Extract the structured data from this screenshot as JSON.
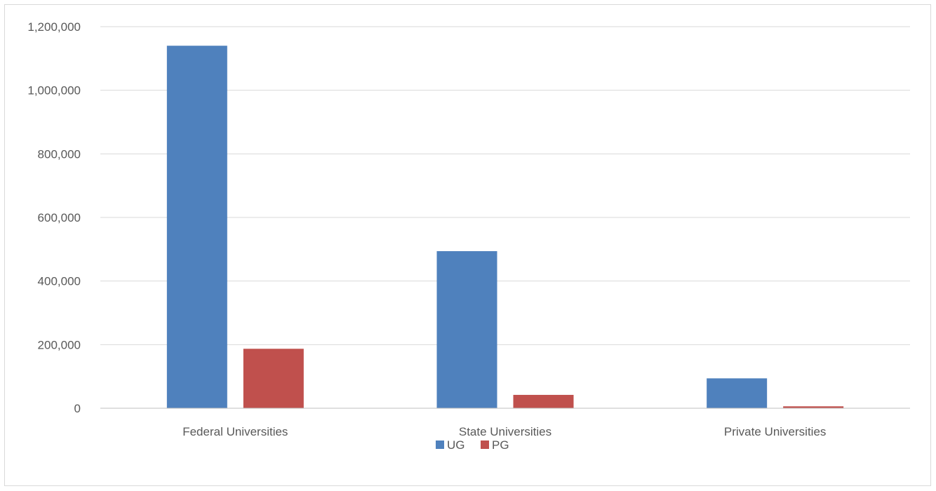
{
  "chart_data": {
    "type": "bar",
    "categories": [
      "Federal Universities",
      "State Universities",
      "Private Universities"
    ],
    "series": [
      {
        "name": "UG",
        "color": "#4f81bd",
        "values": [
          1140000,
          494000,
          94000
        ]
      },
      {
        "name": "PG",
        "color": "#c0504d",
        "values": [
          187000,
          42000,
          6000
        ]
      }
    ],
    "ylim": [
      0,
      1200000
    ],
    "yticks": [
      "0",
      "200,000",
      "400,000",
      "600,000",
      "800,000",
      "1,000,000",
      "1,200,000"
    ],
    "ytick_values": [
      0,
      200000,
      400000,
      600000,
      800000,
      1000000,
      1200000
    ],
    "grid": true,
    "legend_position": "bottom",
    "title": "",
    "xlabel": "",
    "ylabel": ""
  },
  "style": {
    "grid_color": "#d9d9d9",
    "axis_color": "#bfbfbf",
    "text_color": "#595959"
  }
}
